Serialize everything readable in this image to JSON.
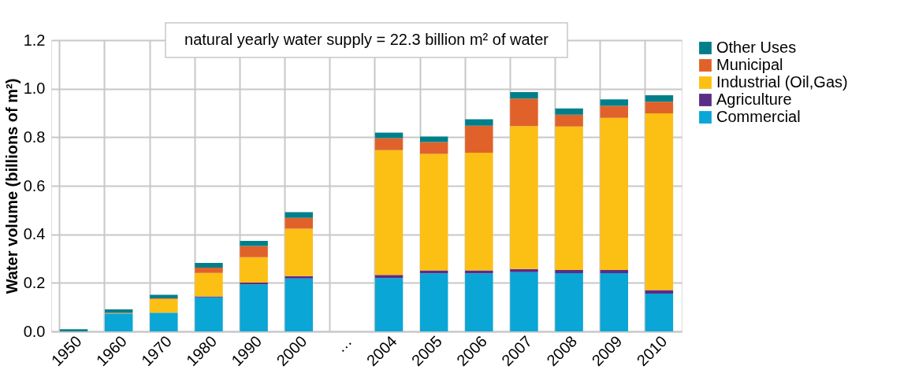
{
  "chart_data": {
    "type": "bar",
    "stacked": true,
    "ylabel": "Water volume (billions of m²)",
    "annotations": [
      "natural yearly water supply = 22.3 billion m² of water"
    ],
    "categories": [
      "1950",
      "1960",
      "1970",
      "1980",
      "1990",
      "2000",
      "…",
      "2004",
      "2005",
      "2006",
      "2007",
      "2008",
      "2009",
      "2010"
    ],
    "series": [
      {
        "name": "Commercial",
        "color": "#0aa6d6",
        "values": [
          0,
          0.072,
          0.077,
          0.14,
          0.194,
          0.218,
          null,
          0.22,
          0.239,
          0.239,
          0.244,
          0.24,
          0.24,
          0.156
        ]
      },
      {
        "name": "Agriculture",
        "color": "#5b2c86",
        "values": [
          0,
          0.002,
          null,
          0.004,
          0.007,
          0.01,
          null,
          0.013,
          0.012,
          0.012,
          0.013,
          0.013,
          0.013,
          0.014
        ]
      },
      {
        "name": "Industrial (Oil,Gas)",
        "color": "#fcbf14",
        "values": [
          0,
          0.002,
          0.057,
          0.097,
          0.105,
          0.195,
          null,
          0.514,
          0.48,
          0.485,
          0.589,
          0.591,
          0.627,
          0.728
        ]
      },
      {
        "name": "Municipal",
        "color": "#e0622a",
        "values": [
          0,
          0,
          0.002,
          0.022,
          0.046,
          0.045,
          null,
          0.049,
          0.049,
          0.111,
          0.113,
          0.049,
          0.049,
          0.048
        ]
      },
      {
        "name": "Other Uses",
        "color": "#007f8a",
        "values": [
          0.009,
          0.015,
          0.015,
          0.019,
          0.021,
          0.023,
          null,
          0.023,
          0.023,
          0.027,
          0.027,
          0.026,
          0.027,
          0.027
        ]
      }
    ],
    "ylim": [
      0,
      1.2
    ],
    "yticks": [
      {
        "value": 0,
        "label": "0.0"
      },
      0.2,
      0.4,
      0.6,
      0.8,
      {
        "value": 1,
        "label": "1.0"
      },
      1.2
    ],
    "grid": true,
    "legend": "right"
  }
}
